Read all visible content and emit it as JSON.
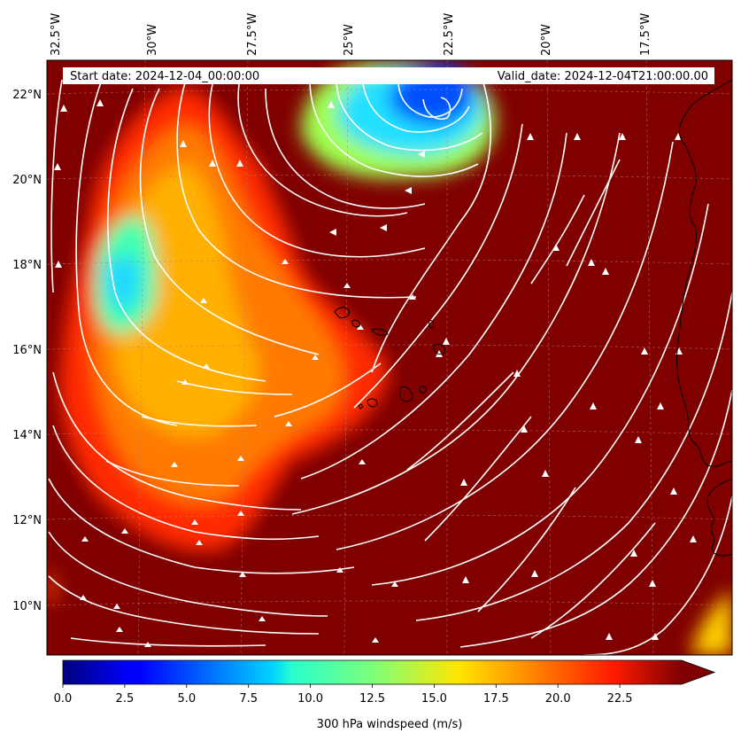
{
  "header": {
    "start_date": "Start date: 2024-12-04_00:00:00",
    "valid_date": "Valid_date: 2024-12-04T21:00:00.00"
  },
  "map": {
    "lon_labels": [
      "32.5°W",
      "30°W",
      "27.5°W",
      "25°W",
      "22.5°W",
      "20°W",
      "17.5°W"
    ],
    "lat_labels": [
      "22°N",
      "20°N",
      "18°N",
      "16°N",
      "14°N",
      "12°N",
      "10°N"
    ],
    "background_color": "#800000",
    "streamline_color": "#ffffff",
    "coastline_color": "#000000"
  },
  "colorbar": {
    "title": "300 hPa windspeed (m/s)",
    "ticks": [
      "0.0",
      "2.5",
      "5.0",
      "7.5",
      "10.0",
      "12.5",
      "15.0",
      "17.5",
      "20.0",
      "22.5"
    ],
    "range": [
      0,
      25
    ],
    "colormap": "jet",
    "extend": "max"
  }
}
